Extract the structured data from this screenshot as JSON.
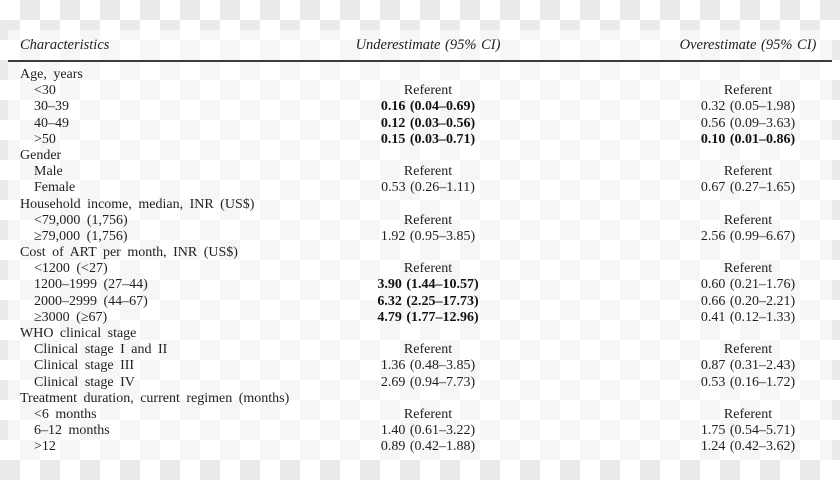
{
  "theme": {
    "checker_gray": "#eaeaea",
    "plate_white": "rgba(255,255,255,0.55)",
    "rule_color": "#3c3c3c",
    "text_color": "#1f1f1f"
  },
  "table": {
    "columns": {
      "characteristics": "Characteristics",
      "underestimate": "Underestimate (95% CI)",
      "overestimate": "Overestimate (95% CI)"
    },
    "sections": [
      {
        "label": "Age, years",
        "rows": [
          {
            "label": "<30",
            "under": "Referent",
            "under_bold": false,
            "over": "Referent",
            "over_bold": false
          },
          {
            "label": "30–39",
            "under": "0.16 (0.04–0.69)",
            "under_bold": true,
            "over": "0.32 (0.05–1.98)",
            "over_bold": false
          },
          {
            "label": "40–49",
            "under": "0.12 (0.03–0.56)",
            "under_bold": true,
            "over": "0.56 (0.09–3.63)",
            "over_bold": false
          },
          {
            "label": ">50",
            "under": "0.15 (0.03–0.71)",
            "under_bold": true,
            "over": "0.10 (0.01–0.86)",
            "over_bold": true
          }
        ]
      },
      {
        "label": "Gender",
        "rows": [
          {
            "label": "Male",
            "under": "Referent",
            "under_bold": false,
            "over": "Referent",
            "over_bold": false
          },
          {
            "label": "Female",
            "under": "0.53 (0.26–1.11)",
            "under_bold": false,
            "over": "0.67 (0.27–1.65)",
            "over_bold": false
          }
        ]
      },
      {
        "label": "Household income, median, INR (US$)",
        "rows": [
          {
            "label": "<79,000 (1,756)",
            "under": "Referent",
            "under_bold": false,
            "over": "Referent",
            "over_bold": false
          },
          {
            "label": "≥79,000 (1,756)",
            "under": "1.92 (0.95–3.85)",
            "under_bold": false,
            "over": "2.56 (0.99–6.67)",
            "over_bold": false
          }
        ]
      },
      {
        "label": "Cost of ART per month, INR (US$)",
        "rows": [
          {
            "label": "<1200 (<27)",
            "under": "Referent",
            "under_bold": false,
            "over": "Referent",
            "over_bold": false
          },
          {
            "label": "1200–1999 (27–44)",
            "under": "3.90 (1.44–10.57)",
            "under_bold": true,
            "over": "0.60 (0.21–1.76)",
            "over_bold": false
          },
          {
            "label": "2000–2999 (44–67)",
            "under": "6.32 (2.25–17.73)",
            "under_bold": true,
            "over": "0.66 (0.20–2.21)",
            "over_bold": false
          },
          {
            "label": "≥3000 (≥67)",
            "under": "4.79 (1.77–12.96)",
            "under_bold": true,
            "over": "0.41 (0.12–1.33)",
            "over_bold": false
          }
        ]
      },
      {
        "label": "WHO clinical stage",
        "rows": [
          {
            "label": "Clinical stage I and II",
            "under": "Referent",
            "under_bold": false,
            "over": "Referent",
            "over_bold": false
          },
          {
            "label": "Clinical stage III",
            "under": "1.36 (0.48–3.85)",
            "under_bold": false,
            "over": "0.87 (0.31–2.43)",
            "over_bold": false
          },
          {
            "label": "Clinical stage IV",
            "under": "2.69 (0.94–7.73)",
            "under_bold": false,
            "over": "0.53 (0.16–1.72)",
            "over_bold": false
          }
        ]
      },
      {
        "label": "Treatment duration, current regimen (months)",
        "rows": [
          {
            "label": "<6 months",
            "under": "Referent",
            "under_bold": false,
            "over": "Referent",
            "over_bold": false
          },
          {
            "label": "6–12 months",
            "under": "1.40 (0.61–3.22)",
            "under_bold": false,
            "over": "1.75 (0.54–5.71)",
            "over_bold": false
          },
          {
            "label": ">12",
            "under": "0.89 (0.42–1.88)",
            "under_bold": false,
            "over": "1.24 (0.42–3.62)",
            "over_bold": false
          }
        ]
      }
    ]
  }
}
